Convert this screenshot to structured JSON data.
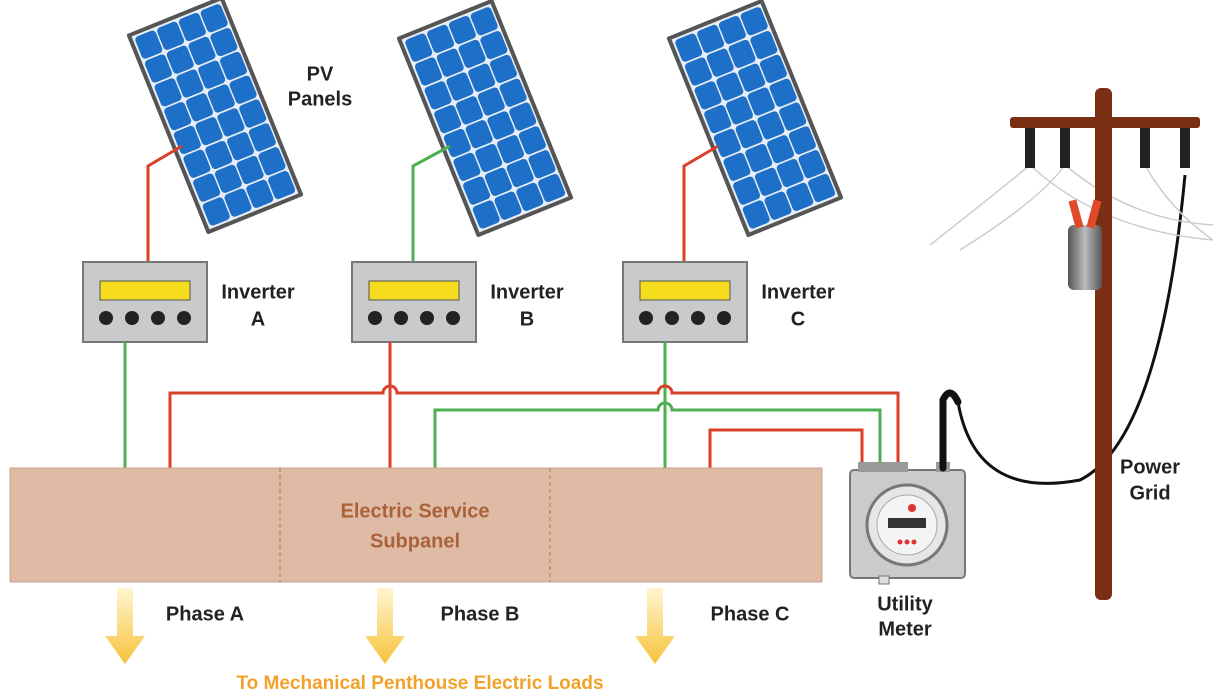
{
  "pv_panels_label": [
    "PV",
    "Panels"
  ],
  "inverters": [
    {
      "label": [
        "Inverter",
        "A"
      ]
    },
    {
      "label": [
        "Inverter",
        "B"
      ]
    },
    {
      "label": [
        "Inverter",
        "C"
      ]
    }
  ],
  "subpanel": {
    "label": [
      "Electric Service",
      "Subpanel"
    ]
  },
  "phases": [
    "Phase A",
    "Phase B",
    "Phase C"
  ],
  "utility_meter": {
    "label": [
      "Utility",
      "Meter"
    ]
  },
  "power_grid": {
    "label": [
      "Power",
      "Grid"
    ]
  },
  "footer": "To Mechanical Penthouse Electric Loads"
}
